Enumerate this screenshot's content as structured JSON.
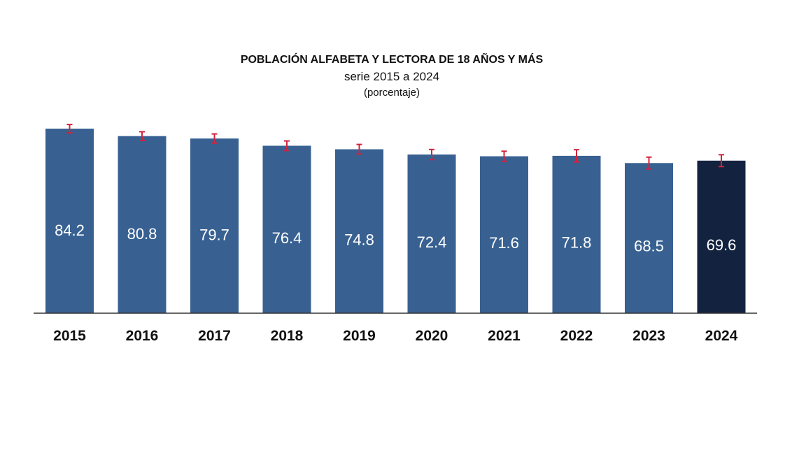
{
  "chart_data": {
    "type": "bar",
    "title": "POBLACIÓN ALFABETA Y LECTORA DE 18 AÑOS Y MÁS",
    "subtitle": "serie 2015 a 2024",
    "unit_label": "(porcentaje)",
    "categories": [
      "2015",
      "2016",
      "2017",
      "2018",
      "2019",
      "2020",
      "2021",
      "2022",
      "2023",
      "2024"
    ],
    "values": [
      84.2,
      80.8,
      79.7,
      76.4,
      74.8,
      72.4,
      71.6,
      71.8,
      68.5,
      69.6
    ],
    "error_margins": [
      1.9,
      2.0,
      2.1,
      2.2,
      2.2,
      2.3,
      2.3,
      2.8,
      2.7,
      2.7
    ],
    "ylim": [
      0,
      100
    ],
    "grid": false,
    "colors": {
      "bar": "#386192",
      "highlight_bar": "#13233f",
      "error_bar": "#d0243c",
      "label": "#ffffff"
    },
    "highlight_category": "2024"
  }
}
